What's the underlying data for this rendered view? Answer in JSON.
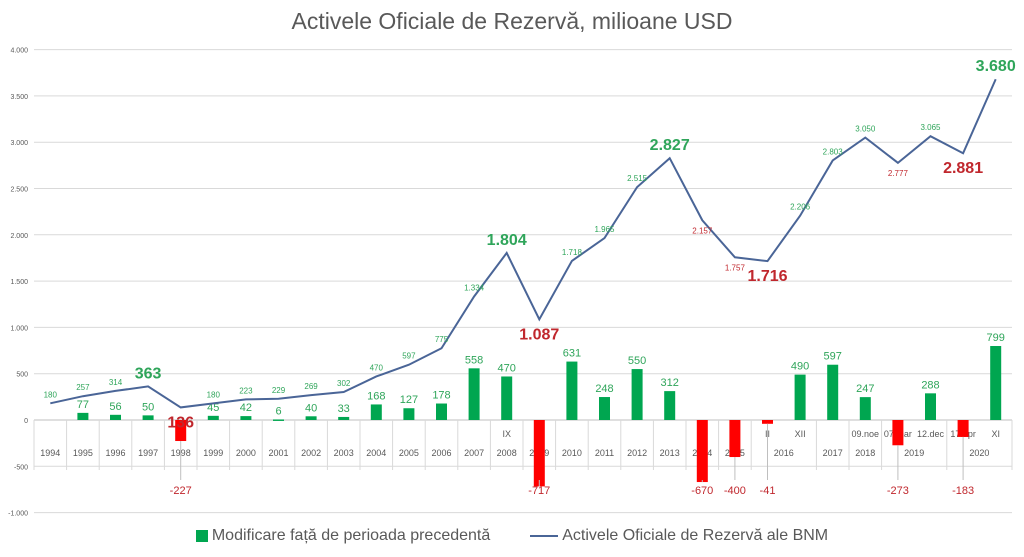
{
  "chart_data": {
    "type": "bar+line",
    "title": "Activele Oficiale de Rezervă, milioane USD",
    "ylim": [
      -1000,
      4000
    ],
    "yticks": [
      4000,
      3500,
      3000,
      2500,
      2000,
      1500,
      1000,
      500,
      0,
      -500,
      -1000
    ],
    "ytick_labels": [
      "4.000",
      "3.500",
      "3.000",
      "2.500",
      "2.000",
      "1.500",
      "1.000",
      "500",
      "0",
      "-500",
      "-1.000"
    ],
    "grid": true,
    "legend_position": "bottom",
    "categories": [
      {
        "year": "1994",
        "sub": ""
      },
      {
        "year": "1995",
        "sub": ""
      },
      {
        "year": "1996",
        "sub": ""
      },
      {
        "year": "1997",
        "sub": ""
      },
      {
        "year": "1998",
        "sub": ""
      },
      {
        "year": "1999",
        "sub": ""
      },
      {
        "year": "2000",
        "sub": ""
      },
      {
        "year": "2001",
        "sub": ""
      },
      {
        "year": "2002",
        "sub": ""
      },
      {
        "year": "2003",
        "sub": ""
      },
      {
        "year": "2004",
        "sub": ""
      },
      {
        "year": "2005",
        "sub": ""
      },
      {
        "year": "2006",
        "sub": ""
      },
      {
        "year": "2007",
        "sub": ""
      },
      {
        "year": "2008",
        "sub": "IX"
      },
      {
        "year": "2009",
        "sub": "IV"
      },
      {
        "year": "2010",
        "sub": ""
      },
      {
        "year": "2011",
        "sub": ""
      },
      {
        "year": "2012",
        "sub": ""
      },
      {
        "year": "2013",
        "sub": ""
      },
      {
        "year": "2014",
        "sub": ""
      },
      {
        "year": "2015",
        "sub": ""
      },
      {
        "year": "2016",
        "sub": "II"
      },
      {
        "year": "2016",
        "sub": "XII"
      },
      {
        "year": "2017",
        "sub": ""
      },
      {
        "year": "2018",
        "sub": "09.noe"
      },
      {
        "year": "2019",
        "sub": "07.mar"
      },
      {
        "year": "2019",
        "sub": "12.dec"
      },
      {
        "year": "2020",
        "sub": "17.apr"
      },
      {
        "year": "2020",
        "sub": "XI"
      }
    ],
    "year_groups": [
      "1994",
      "1995",
      "1996",
      "1997",
      "1998",
      "1999",
      "2000",
      "2001",
      "2002",
      "2003",
      "2004",
      "2005",
      "2006",
      "2007",
      "2008",
      "2009",
      "2010",
      "2011",
      "2012",
      "2013",
      "2014",
      "2015",
      "2016",
      "2017",
      "2018",
      "2019",
      "2020"
    ],
    "series": [
      {
        "name": "Modificare față de  perioada precedentă",
        "type": "bar",
        "values": [
          null,
          77,
          56,
          50,
          -227,
          45,
          42,
          6,
          40,
          33,
          168,
          127,
          178,
          558,
          470,
          -717,
          631,
          248,
          550,
          312,
          -670,
          -400,
          -41,
          490,
          597,
          247,
          -273,
          288,
          -183,
          799
        ],
        "labels": [
          "",
          "77",
          "56",
          "50",
          "-227",
          "45",
          "42",
          "6",
          "40",
          "33",
          "168",
          "127",
          "178",
          "558",
          "470",
          "-717",
          "631",
          "248",
          "550",
          "312",
          "-670",
          "-400",
          "-41",
          "490",
          "597",
          "247",
          "-273",
          "288",
          "-183",
          "799"
        ]
      },
      {
        "name": "Activele Oficiale de Rezervă ale BNM",
        "type": "line",
        "values": [
          180,
          257,
          314,
          363,
          136,
          180,
          223,
          229,
          269,
          302,
          470,
          597,
          775,
          1334,
          1804,
          1087,
          1718,
          1965,
          2515,
          2827,
          2157,
          1757,
          1716,
          2206,
          2803,
          3050,
          2777,
          3065,
          2881,
          3680
        ],
        "labels": [
          "180",
          "257",
          "314",
          "363",
          "136",
          "180",
          "223",
          "229",
          "269",
          "302",
          "470",
          "597",
          "775",
          "1.334",
          "1.804",
          "1.087",
          "1.718",
          "1.965",
          "2.515",
          "2.827",
          "2.157",
          "1.757",
          "1.716",
          "2.206",
          "2.803",
          "3.050",
          "2.777",
          "3.065",
          "2.881",
          "3.680"
        ],
        "highlighted": [
          false,
          false,
          false,
          true,
          true,
          false,
          false,
          false,
          false,
          false,
          false,
          false,
          false,
          false,
          true,
          true,
          false,
          false,
          false,
          true,
          false,
          false,
          true,
          false,
          false,
          false,
          false,
          false,
          true,
          true
        ],
        "label_tone": [
          "up",
          "up",
          "up",
          "up",
          "down",
          "up",
          "up",
          "up",
          "up",
          "up",
          "up",
          "up",
          "up",
          "up",
          "up",
          "down",
          "up",
          "up",
          "up",
          "up",
          "down",
          "down",
          "down",
          "up",
          "up",
          "up",
          "down",
          "up",
          "down",
          "up"
        ]
      }
    ],
    "colors": {
      "positive": "#00a650",
      "negative": "#ff0000",
      "line": "#4a6597",
      "label_green": "#2fa55a",
      "label_red": "#c0272d",
      "axis_text": "#595959",
      "grid": "#d9d9d9"
    }
  }
}
